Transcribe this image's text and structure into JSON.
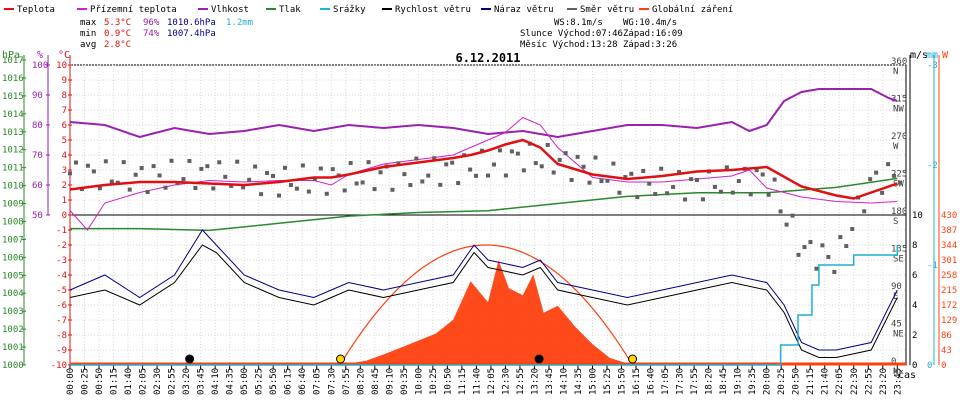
{
  "legend": [
    {
      "label": "Teplota",
      "color": "#e01010"
    },
    {
      "label": "Přízemní teplota",
      "color": "#d020d0"
    },
    {
      "label": "Vlhkost",
      "color": "#9a20b0"
    },
    {
      "label": "Tlak",
      "color": "#2a8a2a"
    },
    {
      "label": "Srážky",
      "color": "#20b0d0"
    },
    {
      "label": "Rychlost větru",
      "color": "#000000"
    },
    {
      "label": "Náraz větru",
      "color": "#00008a"
    },
    {
      "label": "Směr větru",
      "color": "#606060"
    },
    {
      "label": "Globální záření",
      "color": "#ff4010"
    }
  ],
  "stats": {
    "max_label": "max",
    "max_temp": "5.3°C",
    "max_hum": "96%",
    "max_press": "1010.6hPa",
    "max_rain": "1.2mm",
    "min_label": "min",
    "min_temp": "0.9°C",
    "min_hum": "74%",
    "min_press": "1007.4hPa",
    "avg_label": "avg",
    "avg_temp": "2.8°C"
  },
  "wind_info": {
    "ws": "WS:8.1m/s",
    "wg": "WG:10.4m/s"
  },
  "sun_info": {
    "rise": "Slunce Východ:07:46",
    "set": "Západ:16:09"
  },
  "moon_info": {
    "rise": "Měsíc  Východ:13:28",
    "set": "Západ:3:26"
  },
  "chart_data": {
    "type": "line",
    "title": "6.12.2011",
    "xlabel": "čas",
    "x_ticks": [
      "00:00",
      "00:25",
      "00:50",
      "01:15",
      "01:40",
      "02:05",
      "02:30",
      "02:55",
      "03:20",
      "03:45",
      "04:10",
      "04:35",
      "05:00",
      "05:25",
      "05:50",
      "06:15",
      "06:40",
      "07:05",
      "07:30",
      "07:55",
      "08:20",
      "08:45",
      "09:10",
      "09:35",
      "10:00",
      "10:25",
      "10:50",
      "11:15",
      "11:40",
      "12:05",
      "12:30",
      "12:55",
      "13:20",
      "13:45",
      "14:10",
      "14:35",
      "15:00",
      "15:25",
      "15:50",
      "16:15",
      "16:40",
      "17:05",
      "17:30",
      "17:55",
      "18:20",
      "18:45",
      "19:10",
      "19:35",
      "20:00",
      "20:25",
      "20:50",
      "21:15",
      "21:40",
      "22:05",
      "22:30",
      "22:55",
      "23:20",
      "23:45"
    ],
    "axes": {
      "hPa": {
        "label": "hPa",
        "ticks": [
          "1000",
          "1001",
          "1002",
          "1003",
          "1004",
          "1005",
          "1006",
          "1007",
          "1008",
          "1009",
          "1010",
          "1011",
          "1012",
          "1013",
          "1014",
          "1015",
          "1016",
          "1017"
        ]
      },
      "humidity": {
        "label": "%",
        "ticks": [
          "50",
          "60",
          "70",
          "80",
          "90",
          "100"
        ]
      },
      "temperature": {
        "label": "°C",
        "ticks": [
          "-10",
          "-9",
          "-8",
          "-7",
          "-6",
          "-5",
          "-4",
          "-3",
          "-2",
          "-1",
          "0",
          "1",
          "2",
          "3",
          "4",
          "5",
          "6",
          "7",
          "8",
          "9",
          "10"
        ]
      },
      "wind_speed": {
        "label": "m/s",
        "ticks": [
          "0",
          "2",
          "4",
          "6",
          "8",
          "10"
        ]
      },
      "rain": {
        "label": "mm",
        "ticks": [
          "0",
          "-1",
          "-2",
          "-3"
        ]
      },
      "radiation": {
        "label": "W",
        "ticks": [
          "0",
          "43",
          "86",
          "129",
          "172",
          "215",
          "258",
          "301",
          "344",
          "387",
          "430"
        ]
      },
      "wind_dir": {
        "labels": [
          "0 N",
          "45 NE",
          "90 E",
          "135 SE",
          "180 S",
          "225 SW",
          "270 W",
          "315 NW",
          "360 N"
        ]
      }
    },
    "series": [
      {
        "name": "Teplota",
        "unit": "°C",
        "t": [
          0,
          1,
          2,
          3,
          4,
          5,
          6,
          7,
          7.5,
          8,
          9,
          10,
          11,
          11.5,
          12,
          12.5,
          13,
          13.5,
          14,
          15,
          16,
          17,
          18,
          19,
          20,
          21,
          22,
          22.5,
          23,
          23.75
        ],
        "values": [
          1.7,
          2.0,
          2.2,
          2.2,
          2.1,
          2.0,
          2.2,
          2.5,
          2.5,
          2.7,
          3.2,
          3.5,
          3.8,
          4.0,
          4.3,
          4.7,
          5.0,
          4.5,
          3.4,
          2.7,
          2.4,
          2.6,
          2.9,
          3.0,
          3.2,
          1.9,
          1.3,
          1.1,
          1.5,
          2.1
        ]
      },
      {
        "name": "Přízemní teplota",
        "unit": "°C",
        "t": [
          0,
          0.5,
          1,
          2,
          3,
          4,
          5,
          6,
          7,
          7.5,
          8,
          9,
          10,
          11,
          12,
          12.5,
          13,
          13.5,
          14,
          14.5,
          15,
          16,
          17,
          18,
          19,
          19.5,
          20,
          21,
          22,
          23,
          23.75
        ],
        "values": [
          0.3,
          -1.0,
          0.8,
          1.5,
          2.0,
          2.3,
          2.2,
          2.3,
          2.3,
          2.0,
          2.7,
          3.4,
          3.7,
          4.0,
          5.0,
          5.5,
          6.5,
          6.0,
          4.5,
          3.5,
          2.5,
          2.2,
          2.2,
          2.4,
          2.6,
          3.0,
          1.8,
          1.2,
          0.9,
          0.8,
          0.9
        ]
      },
      {
        "name": "Vlhkost",
        "unit": "%",
        "t": [
          0,
          1,
          2,
          3,
          4,
          5,
          6,
          7,
          8,
          9,
          10,
          11,
          12,
          13,
          14,
          15,
          16,
          17,
          18,
          19,
          19.5,
          20,
          20.5,
          21,
          21.5,
          22,
          23,
          23.5,
          23.75
        ],
        "values": [
          81,
          80,
          76,
          79,
          77,
          78,
          80,
          78,
          80,
          79,
          80,
          79,
          77,
          78,
          76,
          78,
          80,
          80,
          79,
          81,
          78,
          80,
          88,
          91,
          92,
          92,
          92,
          89,
          88
        ]
      },
      {
        "name": "Tlak",
        "unit": "hPa",
        "t": [
          0,
          2,
          4,
          6,
          8,
          10,
          12,
          14,
          16,
          18,
          20,
          22,
          23.75
        ],
        "values": [
          1007.6,
          1007.6,
          1007.5,
          1007.9,
          1008.3,
          1008.5,
          1008.6,
          1009.0,
          1009.4,
          1009.6,
          1009.6,
          1009.9,
          1010.4
        ]
      },
      {
        "name": "Srážky",
        "unit": "mm",
        "t": [
          0,
          20,
          20.4,
          20.9,
          21.3,
          21.5,
          22,
          22.5,
          23,
          23.75
        ],
        "values": [
          0,
          0,
          0.2,
          0.5,
          0.8,
          1.0,
          1.0,
          1.1,
          1.1,
          1.2
        ]
      },
      {
        "name": "Rychlost větru",
        "unit": "m/s",
        "t": [
          0,
          1,
          2,
          3,
          3.8,
          4.2,
          5,
          6,
          7,
          7.5,
          8,
          9,
          10,
          11,
          11.6,
          12,
          13,
          13.5,
          14,
          15,
          16,
          17,
          18,
          19,
          20,
          20.5,
          21,
          21.5,
          22,
          23,
          23.75
        ],
        "values": [
          4.5,
          5.0,
          4.0,
          5.5,
          8.0,
          7.5,
          5.5,
          4.5,
          4.0,
          4.5,
          5.0,
          4.5,
          5.0,
          5.5,
          7.5,
          6.5,
          6.0,
          6.5,
          5.0,
          4.5,
          4.0,
          4.5,
          5.0,
          5.5,
          5.0,
          3.5,
          1.0,
          0.5,
          0.5,
          1.0,
          4.5
        ]
      },
      {
        "name": "Náraz větru",
        "unit": "m/s",
        "t": [
          0,
          1,
          2,
          3,
          3.8,
          4.2,
          5,
          6,
          7,
          7.5,
          8,
          9,
          10,
          11,
          11.6,
          12,
          13,
          13.5,
          14,
          15,
          16,
          17,
          18,
          19,
          20,
          20.5,
          21,
          21.5,
          22,
          23,
          23.75
        ],
        "values": [
          5.0,
          6.0,
          4.5,
          6.0,
          9.0,
          8.0,
          6.0,
          5.0,
          4.5,
          5.0,
          5.5,
          5.0,
          5.5,
          6.0,
          8.0,
          7.0,
          6.5,
          7.0,
          5.5,
          5.0,
          4.5,
          5.0,
          5.5,
          6.0,
          5.5,
          4.0,
          1.5,
          1.0,
          1.0,
          1.5,
          5.0
        ]
      },
      {
        "name": "Globální záření",
        "unit": "W/m²",
        "t": [
          7.75,
          8.5,
          9,
          9.5,
          10,
          10.5,
          11,
          11.5,
          12,
          12.3,
          12.6,
          13,
          13.3,
          13.6,
          14,
          14.5,
          15,
          15.5,
          16.15
        ],
        "values": [
          0,
          12,
          30,
          50,
          70,
          90,
          130,
          240,
          180,
          300,
          220,
          200,
          260,
          150,
          170,
          110,
          60,
          20,
          0
        ]
      },
      {
        "name": "Směr větru",
        "unit": "°",
        "t": [
          0,
          2,
          4,
          6,
          8,
          10,
          12,
          13,
          14,
          16,
          18,
          20,
          21,
          22,
          23,
          23.75
        ],
        "values": [
          230,
          225,
          230,
          220,
          225,
          230,
          240,
          250,
          245,
          220,
          215,
          225,
          140,
          125,
          220,
          230
        ]
      }
    ],
    "markers": [
      {
        "type": "moonset",
        "time": "3:26"
      },
      {
        "type": "sunrise",
        "time": "07:46"
      },
      {
        "type": "moonrise",
        "time": "13:28"
      },
      {
        "type": "sunset",
        "time": "16:09"
      }
    ]
  }
}
